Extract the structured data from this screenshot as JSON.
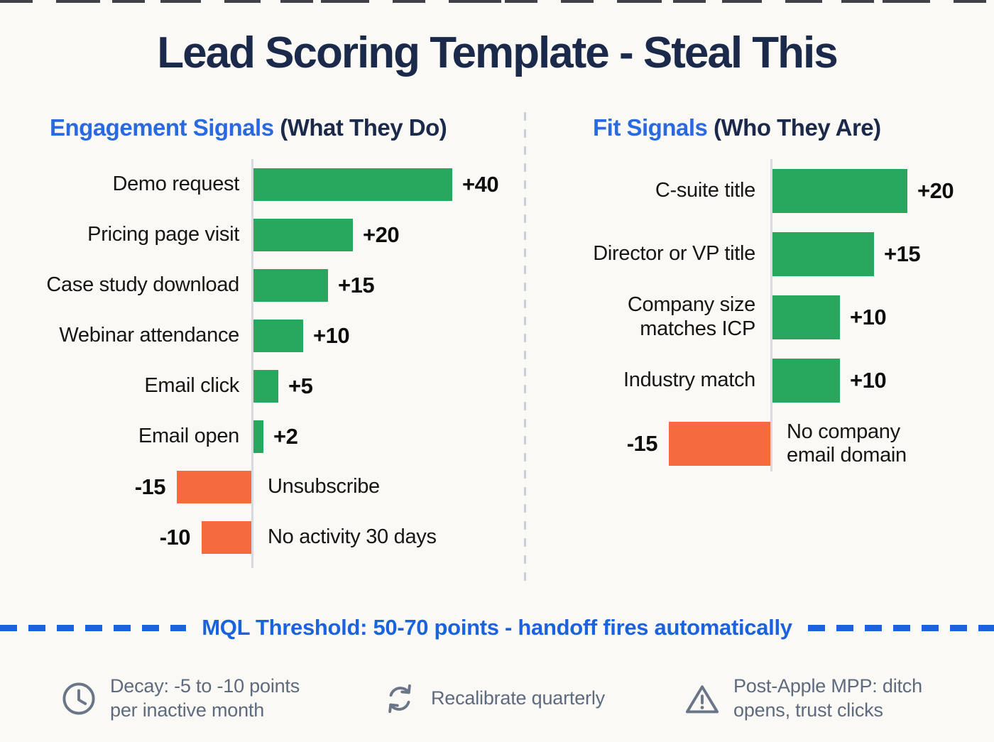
{
  "title": "Lead Scoring Template - Steal This",
  "sections": {
    "engagement": {
      "heading_blue": "Engagement Signals",
      "heading_dark": " (What They Do)"
    },
    "fit": {
      "heading_blue": "Fit Signals",
      "heading_dark": " (Who They Are)"
    }
  },
  "chart_data": [
    {
      "type": "bar",
      "orientation": "horizontal",
      "title": "Engagement Signals (What They Do)",
      "categories": [
        "Demo request",
        "Pricing page visit",
        "Case study download",
        "Webinar attendance",
        "Email click",
        "Email open",
        "Unsubscribe",
        "No activity 30 days"
      ],
      "values": [
        40,
        20,
        15,
        10,
        5,
        2,
        -15,
        -10
      ],
      "value_labels": [
        "+40",
        "+20",
        "+15",
        "+10",
        "+5",
        "+2",
        "-15",
        "-10"
      ],
      "baseline": 0,
      "grid": false,
      "positive_color": "#28a85e",
      "negative_color": "#f66a40"
    },
    {
      "type": "bar",
      "orientation": "horizontal",
      "title": "Fit Signals (Who They Are)",
      "categories": [
        "C-suite title",
        "Director or VP title",
        "Company size matches ICP",
        "Industry match",
        "No company email domain"
      ],
      "values": [
        20,
        15,
        10,
        10,
        -15
      ],
      "value_labels": [
        "+20",
        "+15",
        "+10",
        "+10",
        "-15"
      ],
      "baseline": 0,
      "grid": false,
      "positive_color": "#28a85e",
      "negative_color": "#f66a40"
    }
  ],
  "threshold": {
    "label": "MQL Threshold: 50-70 points - handoff fires automatically"
  },
  "footer": {
    "items": [
      {
        "icon": "clock-icon",
        "line1": "Decay: -5 to -10 points",
        "line2": "per inactive month"
      },
      {
        "icon": "refresh-icon",
        "line1": "Recalibrate quarterly",
        "line2": ""
      },
      {
        "icon": "warning-icon",
        "line1": "Post-Apple MPP: ditch",
        "line2": "opens, trust clicks"
      }
    ]
  },
  "colors": {
    "bg": "#faf9f5",
    "navy": "#1b2a4b",
    "blue": "#2a6ae0",
    "threshold_blue": "#1a63dd",
    "positive_green": "#28a85e",
    "negative_orange": "#f66a40",
    "label_black": "#161616",
    "value_black": "#0e0e0e",
    "axis_gray": "#d7dade",
    "divider_gray": "#c8cfda",
    "footer_text": "#5e6a7d",
    "icon_gray": "#6b7588"
  }
}
